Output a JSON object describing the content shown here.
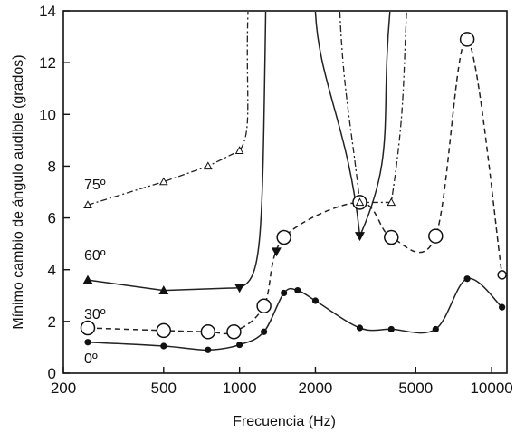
{
  "chart_data": {
    "type": "line",
    "xlabel": "Frecuencia (Hz)",
    "ylabel": "Mínimo cambio de ángulo audible (grados)",
    "xscale": "log",
    "xlim": [
      200,
      11500
    ],
    "ylim": [
      0,
      14
    ],
    "xticks": [
      200,
      500,
      1000,
      2000,
      5000,
      10000
    ],
    "xtick_labels": [
      "200",
      "500",
      "1000",
      "2000",
      "5000",
      "10000"
    ],
    "yticks": [
      0,
      2,
      4,
      6,
      8,
      10,
      12,
      14
    ],
    "ytick_labels": [
      "0",
      "2",
      "4",
      "6",
      "8",
      "10",
      "12",
      "14"
    ],
    "grid": false,
    "series": [
      {
        "name": "0º",
        "color": "#222222",
        "line_style": "solid",
        "marker": "filled-circle",
        "points": [
          [
            250,
            1.2
          ],
          [
            500,
            1.05
          ],
          [
            750,
            0.9
          ],
          [
            1000,
            1.1
          ],
          [
            1250,
            1.6
          ],
          [
            1500,
            3.1
          ],
          [
            1700,
            3.2
          ],
          [
            2000,
            2.8
          ],
          [
            3000,
            1.75
          ],
          [
            4000,
            1.7
          ],
          [
            6000,
            1.7
          ],
          [
            8000,
            3.65
          ],
          [
            11000,
            2.55
          ]
        ]
      },
      {
        "name": "30º",
        "color": "#222222",
        "line_style": "dashed",
        "marker": "open-circle",
        "points": [
          [
            250,
            1.75
          ],
          [
            500,
            1.65
          ],
          [
            750,
            1.6
          ],
          [
            950,
            1.6
          ],
          [
            1250,
            2.6
          ],
          [
            1500,
            5.25
          ],
          [
            3000,
            6.6
          ],
          [
            4000,
            5.25
          ],
          [
            6000,
            5.3
          ],
          [
            8000,
            12.9
          ],
          [
            11000,
            3.8
          ]
        ]
      },
      {
        "name": "60º",
        "color": "#222222",
        "line_style": "solid",
        "marker": "filled-triangle",
        "points": [
          [
            250,
            3.6
          ],
          [
            500,
            3.2
          ],
          [
            1000,
            3.3
          ],
          [
            1400,
            4.7
          ],
          [
            3000,
            5.3
          ]
        ]
      },
      {
        "name": "75º",
        "color": "#222222",
        "line_style": "dash-dot",
        "marker": "open-triangle",
        "points": [
          [
            250,
            6.5
          ],
          [
            500,
            7.4
          ],
          [
            750,
            8.0
          ],
          [
            1000,
            8.6
          ],
          [
            3000,
            6.6
          ],
          [
            4000,
            6.6
          ]
        ]
      }
    ]
  }
}
